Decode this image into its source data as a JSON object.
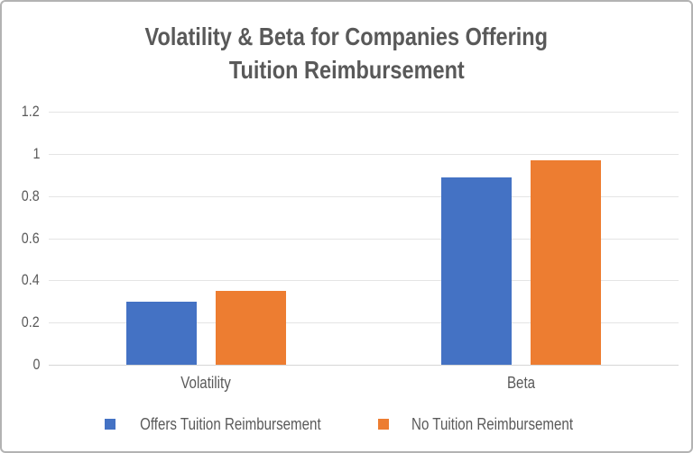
{
  "chart_data": {
    "type": "bar",
    "title": "Volatility & Beta for Companies Offering Tuition Reimbursement",
    "title_line1": "Volatility & Beta for Companies Offering",
    "title_line2": "Tuition Reimbursement",
    "categories": [
      "Volatility",
      "Beta"
    ],
    "series": [
      {
        "name": "Offers Tuition Reimbursement",
        "color": "#4472C4",
        "values": [
          0.3,
          0.89
        ]
      },
      {
        "name": "No Tuition Reimbursement",
        "color": "#ED7D31",
        "values": [
          0.35,
          0.97
        ]
      }
    ],
    "xlabel": "",
    "ylabel": "",
    "y_axis": {
      "min": 0,
      "max": 1.2,
      "step": 0.2,
      "tick_labels": [
        "0",
        "0.2",
        "0.4",
        "0.6",
        "0.8",
        "1",
        "1.2"
      ]
    },
    "grid": true,
    "legend_position": "bottom"
  },
  "colors": {
    "bar_blue": "#4472C4",
    "bar_orange": "#ED7D31",
    "text": "#595959",
    "gridline": "#E4E4E4",
    "axis_line": "#D6D6D6",
    "background": "#FFFFFF",
    "frame_border": "#B3B3B3"
  }
}
